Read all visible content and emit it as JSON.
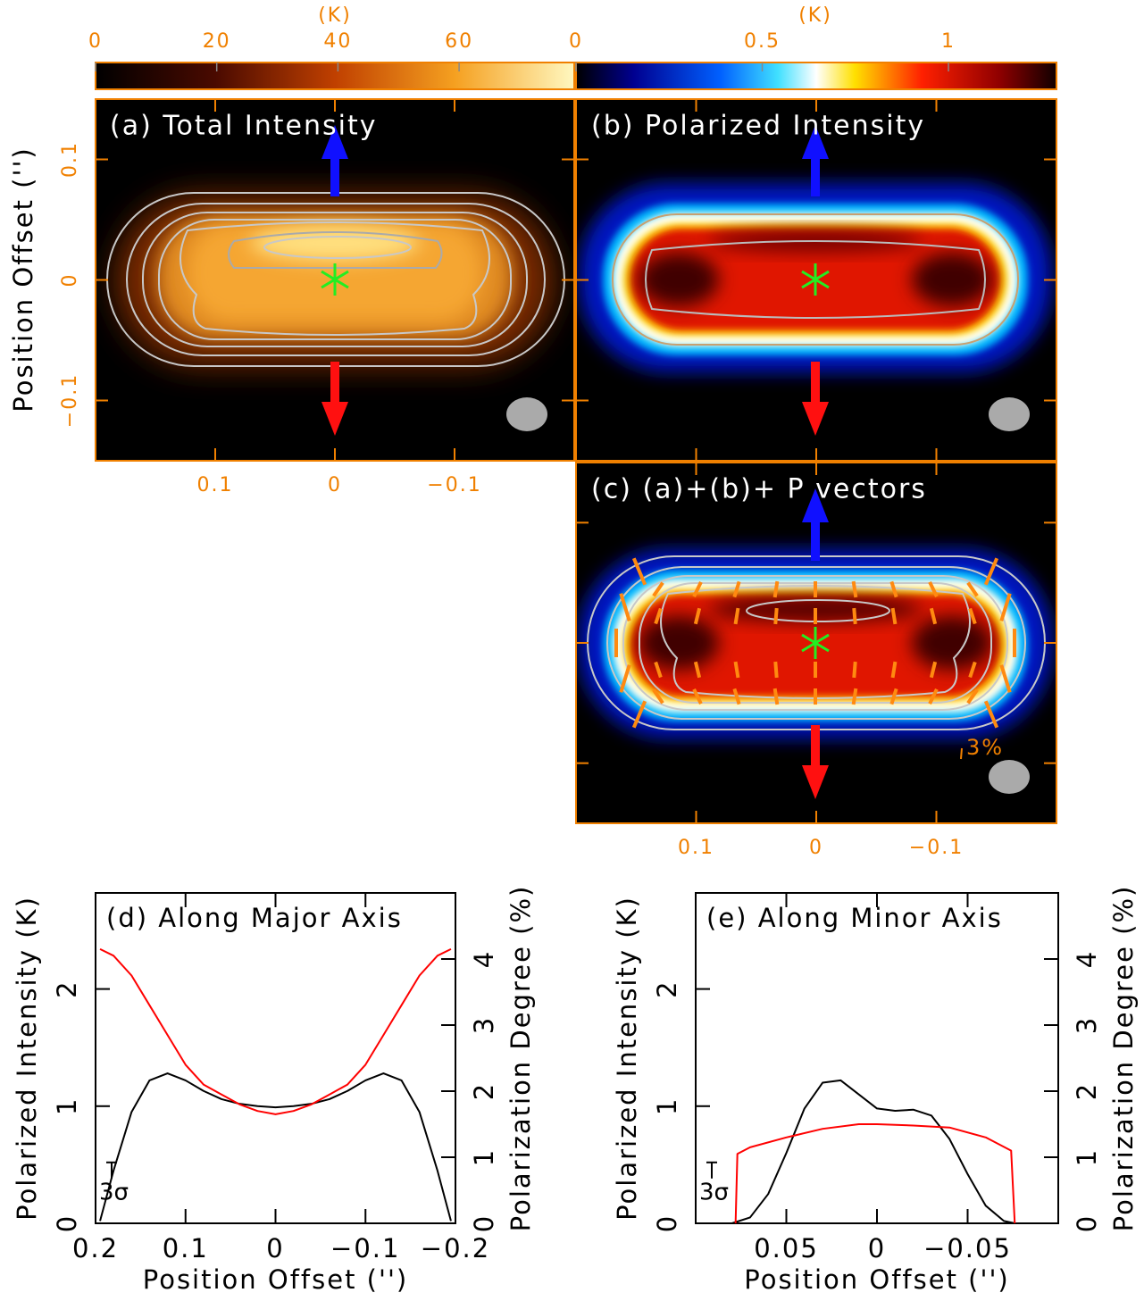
{
  "colorbars": [
    {
      "label": "(K)",
      "lim": [
        0,
        79
      ],
      "ticks": [
        0,
        20,
        40,
        60
      ]
    },
    {
      "label": "(K)",
      "lim": [
        0,
        1.29
      ],
      "ticks": [
        0,
        0.5,
        1
      ]
    }
  ],
  "maps": {
    "xlim": [
      0.2,
      -0.2
    ],
    "ylim": [
      -0.15,
      0.15
    ],
    "xticks": [
      0.1,
      0,
      {
        "value": -0.1,
        "label": "−0.1"
      }
    ],
    "yticks": [
      0.1,
      0,
      {
        "value": -0.1,
        "label": "−0.1"
      }
    ],
    "ylabel": "Position Offset ('')",
    "panels": [
      {
        "title": "(a) Total Intensity"
      },
      {
        "title": "(b) Polarized Intensity"
      },
      {
        "title": "(c) (a)+(b)+ P vectors",
        "scale_label": "3%"
      }
    ]
  },
  "chart_data": [
    {
      "type": "line",
      "title": "(d) Along Major Axis",
      "xlabel": "Position Offset ('')",
      "ylabel": "Polarized Intensity (K)",
      "y2label": "Polarization Degree (%)",
      "xlim": [
        0.2,
        -0.2
      ],
      "xticks": [
        0.2,
        0.1,
        0,
        {
          "value": -0.1,
          "label": "−0.1"
        },
        {
          "value": -0.2,
          "label": "−0.2"
        }
      ],
      "ylim": [
        0,
        2.82
      ],
      "yticks": [
        0,
        1,
        2
      ],
      "y2lim": [
        0,
        5
      ],
      "y2ticks": [
        0,
        1,
        2,
        3,
        4
      ],
      "series": [
        {
          "color": "#000000",
          "x": [
            0.195,
            0.18,
            0.16,
            0.14,
            0.12,
            0.1,
            0.08,
            0.06,
            0.04,
            0.02,
            0,
            -0.02,
            -0.04,
            -0.06,
            -0.08,
            -0.1,
            -0.12,
            -0.14,
            -0.16,
            -0.18,
            -0.195
          ],
          "values": [
            0.02,
            0.45,
            0.95,
            1.22,
            1.28,
            1.22,
            1.13,
            1.06,
            1.02,
            1.0,
            0.99,
            1.0,
            1.02,
            1.06,
            1.13,
            1.22,
            1.28,
            1.22,
            0.95,
            0.45,
            0.02
          ]
        },
        {
          "color": "#ff0000",
          "axis": "y2",
          "x": [
            0.195,
            0.18,
            0.16,
            0.14,
            0.12,
            0.1,
            0.08,
            0.06,
            0.04,
            0.02,
            0,
            -0.02,
            -0.04,
            -0.06,
            -0.08,
            -0.1,
            -0.12,
            -0.14,
            -0.16,
            -0.18,
            -0.195
          ],
          "values": [
            4.15,
            4.05,
            3.75,
            3.3,
            2.85,
            2.4,
            2.1,
            1.95,
            1.8,
            1.7,
            1.65,
            1.7,
            1.8,
            1.95,
            2.1,
            2.4,
            2.85,
            3.3,
            3.75,
            4.05,
            4.15
          ]
        }
      ],
      "annotations": [
        {
          "text": "3σ",
          "y": 0.52
        }
      ]
    },
    {
      "type": "line",
      "title": "(e) Along Minor Axis",
      "xlabel": "Position Offset ('')",
      "ylabel": "Polarized Intensity (K)",
      "y2label": "Polarization Degree (%)",
      "xlim": [
        0.1,
        -0.1
      ],
      "xticks": [
        0.05,
        0,
        {
          "value": -0.05,
          "label": "−0.05"
        }
      ],
      "ylim": [
        0,
        2.82
      ],
      "yticks": [
        0,
        1,
        2
      ],
      "y2lim": [
        0,
        5
      ],
      "y2ticks": [
        0,
        1,
        2,
        3,
        4
      ],
      "series": [
        {
          "color": "#000000",
          "x": [
            0.08,
            0.07,
            0.06,
            0.05,
            0.04,
            0.03,
            0.02,
            0.01,
            0,
            -0.01,
            -0.02,
            -0.03,
            -0.04,
            -0.05,
            -0.06,
            -0.07,
            -0.076
          ],
          "values": [
            0.0,
            0.05,
            0.25,
            0.6,
            0.98,
            1.2,
            1.22,
            1.1,
            0.98,
            0.96,
            0.97,
            0.92,
            0.72,
            0.42,
            0.15,
            0.02,
            0.0
          ]
        },
        {
          "color": "#ff0000",
          "axis": "y2",
          "x": [
            0.078,
            0.077,
            0.07,
            0.05,
            0.03,
            0.01,
            0,
            -0.02,
            -0.04,
            -0.06,
            -0.074,
            -0.076
          ],
          "values": [
            0,
            1.05,
            1.15,
            1.3,
            1.43,
            1.5,
            1.5,
            1.48,
            1.45,
            1.3,
            1.1,
            0
          ]
        }
      ],
      "annotations": [
        {
          "text": "3σ",
          "y": 0.52
        }
      ]
    }
  ]
}
